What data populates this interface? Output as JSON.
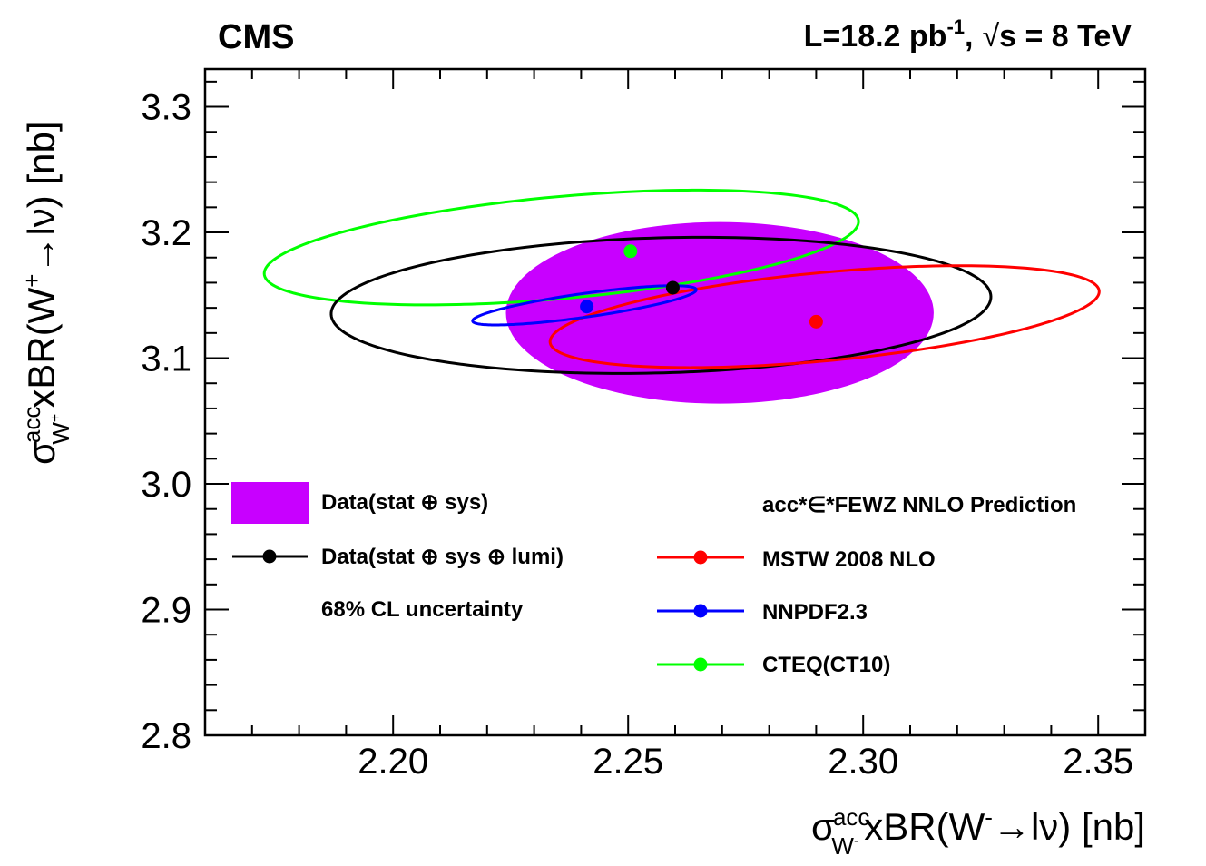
{
  "chart_data": {
    "type": "scatter",
    "experiment_label": "CMS",
    "lumi_label": {
      "lumi_text": "L=18.2 pb",
      "lumi_exp": "-1",
      "comma": ",",
      "sqrt_symbol": "√",
      "energy_text": "s = 8 TeV"
    },
    "xlabel": {
      "sigma": "σ",
      "sup": "acc",
      "sub": "W",
      "sub_charge": "-",
      "main": "xBR(W",
      "charge": "-",
      "rest": "→lν) [nb]"
    },
    "ylabel": {
      "sigma": "σ",
      "sup": "acc",
      "sub": "W",
      "sub_charge": "+",
      "main": "xBR(W",
      "charge": "+",
      "rest": "→lν) [nb]"
    },
    "xlim": [
      2.16,
      2.36
    ],
    "ylim": [
      2.8,
      3.33
    ],
    "xticks": [
      {
        "value": 2.2,
        "label": "2.20"
      },
      {
        "value": 2.25,
        "label": "2.25"
      },
      {
        "value": 2.3,
        "label": "2.30"
      },
      {
        "value": 2.35,
        "label": "2.35"
      }
    ],
    "yticks": [
      {
        "value": 2.8,
        "label": "2.8"
      },
      {
        "value": 2.9,
        "label": "2.9"
      },
      {
        "value": 3.0,
        "label": "3.0"
      },
      {
        "value": 3.1,
        "label": "3.1"
      },
      {
        "value": 3.2,
        "label": "3.2"
      },
      {
        "value": 3.3,
        "label": "3.3"
      }
    ],
    "data_band": {
      "name": "Data(stat ⊕ sys)",
      "color": "#C800FF",
      "cx": 2.2695,
      "cy": 3.136,
      "rx": 0.0455,
      "ry": 0.0722,
      "rot_deg": 0
    },
    "series": [
      {
        "name": "Data(stat ⊕ sys ⊕ lumi)",
        "color": "#000000",
        "center": [
          2.2595,
          3.156
        ],
        "ellipse": {
          "cx": 2.257,
          "cy": 3.142,
          "a": 0.0733,
          "b": 0.0643,
          "theta": 0.6457
        }
      },
      {
        "name": "MSTW 2008 NLO",
        "color": "#FF0000",
        "center": [
          2.29,
          3.129
        ],
        "ellipse": {
          "cx": 2.2918,
          "cy": 3.133,
          "a": 0.0671,
          "b": 0.0384,
          "theta": 0.6437
        }
      },
      {
        "name": "NNPDF2.3",
        "color": "#0000FF",
        "center": [
          2.2412,
          3.141
        ],
        "ellipse": {
          "cx": 2.2407,
          "cy": 3.142,
          "a": 0.0292,
          "b": 0.0097,
          "theta": 0.6622
        }
      },
      {
        "name": "CTEQ(CT10)",
        "color": "#00FF00",
        "center": [
          2.2505,
          3.185
        ],
        "ellipse": {
          "cx": 2.2358,
          "cy": 3.188,
          "a": 0.0728,
          "b": 0.0442,
          "theta": 0.6742
        }
      }
    ],
    "legend_left": {
      "band_label": "Data(stat ⊕ sys)",
      "full_label": "Data(stat ⊕ sys ⊕ lumi)",
      "note": "68% CL uncertainty"
    },
    "legend_right": {
      "header": "acc*∈*FEWZ NNLO Prediction",
      "items": [
        "MSTW 2008 NLO",
        "NNPDF2.3",
        "CTEQ(CT10)"
      ]
    }
  }
}
